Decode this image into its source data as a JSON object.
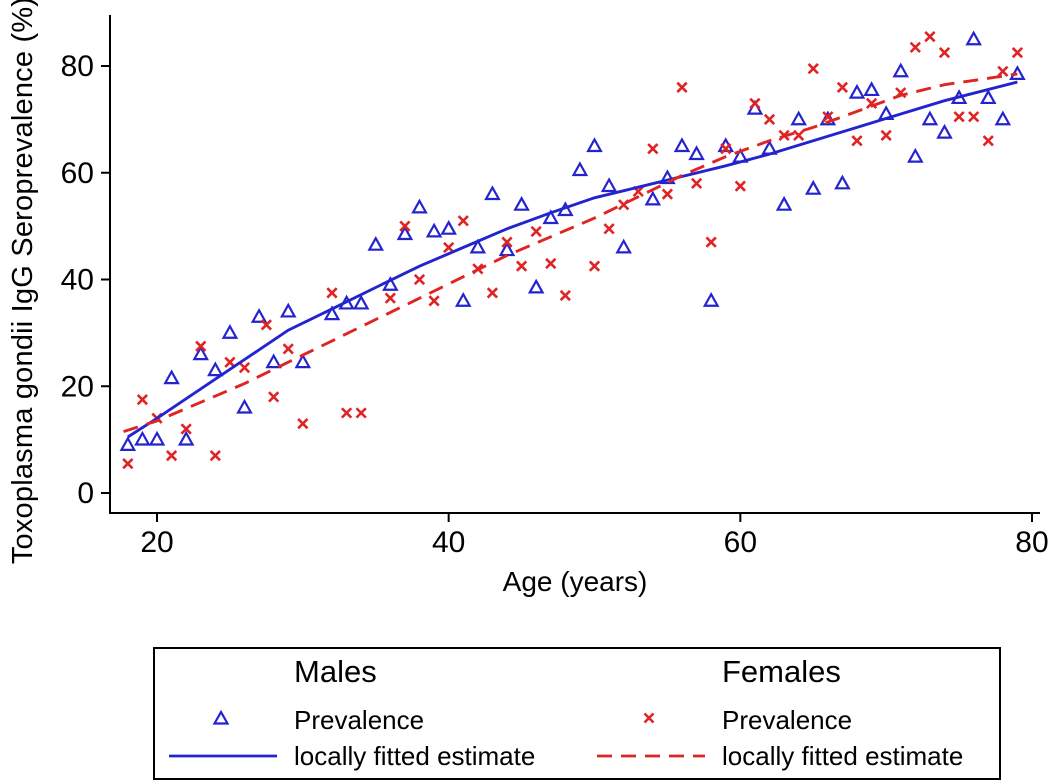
{
  "chart_data": {
    "type": "scatter",
    "title": "",
    "xlabel": "Age (years)",
    "ylabel": "Toxoplasma gondii  IgG  Seroprevalence (%)",
    "xlim": [
      17,
      80.5
    ],
    "ylim": [
      0,
      89
    ],
    "x_ticks": [
      20,
      40,
      60,
      80
    ],
    "y_ticks": [
      0,
      20,
      40,
      60,
      80
    ],
    "grid": false,
    "axis_color": "#000000",
    "series": [
      {
        "name": "Males Prevalence",
        "type": "scatter",
        "marker": "triangle-open",
        "color": "#2424CF",
        "points": [
          [
            18,
            9
          ],
          [
            19,
            10
          ],
          [
            20,
            10
          ],
          [
            21,
            21.5
          ],
          [
            22,
            10
          ],
          [
            23,
            26
          ],
          [
            24,
            23
          ],
          [
            25,
            30
          ],
          [
            26,
            16
          ],
          [
            27,
            33
          ],
          [
            28,
            24.5
          ],
          [
            29,
            34
          ],
          [
            30,
            24.5
          ],
          [
            32,
            33.5
          ],
          [
            33,
            35.5
          ],
          [
            34,
            35.5
          ],
          [
            35,
            46.5
          ],
          [
            36,
            39
          ],
          [
            37,
            48.5
          ],
          [
            38,
            53.5
          ],
          [
            39,
            49
          ],
          [
            40,
            49.5
          ],
          [
            41,
            36
          ],
          [
            42,
            46
          ],
          [
            43,
            56
          ],
          [
            44,
            45.5
          ],
          [
            45,
            54
          ],
          [
            46,
            38.5
          ],
          [
            47,
            51.5
          ],
          [
            48,
            53
          ],
          [
            49,
            60.5
          ],
          [
            50,
            65
          ],
          [
            51,
            57.5
          ],
          [
            52,
            46
          ],
          [
            54,
            55
          ],
          [
            55,
            59
          ],
          [
            56,
            65
          ],
          [
            57,
            63.5
          ],
          [
            58,
            36
          ],
          [
            59,
            65
          ],
          [
            60,
            63
          ],
          [
            61,
            72
          ],
          [
            62,
            64.5
          ],
          [
            63,
            54
          ],
          [
            64,
            70
          ],
          [
            65,
            57
          ],
          [
            66,
            70
          ],
          [
            67,
            58
          ],
          [
            68,
            75
          ],
          [
            69,
            75.5
          ],
          [
            70,
            71
          ],
          [
            71,
            79
          ],
          [
            72,
            63
          ],
          [
            73,
            70
          ],
          [
            74,
            67.5
          ],
          [
            75,
            74
          ],
          [
            76,
            85
          ],
          [
            77,
            74
          ],
          [
            78,
            70
          ],
          [
            79,
            78.5
          ]
        ]
      },
      {
        "name": "Males locally fitted estimate",
        "type": "line",
        "style": "solid",
        "color": "#2424CF",
        "points": [
          [
            18,
            10.5
          ],
          [
            20,
            14
          ],
          [
            23,
            19.5
          ],
          [
            26,
            25
          ],
          [
            29,
            30.5
          ],
          [
            32,
            34.5
          ],
          [
            35,
            38.5
          ],
          [
            38,
            42.5
          ],
          [
            41,
            46
          ],
          [
            44,
            49.5
          ],
          [
            47,
            52.5
          ],
          [
            50,
            55.3
          ],
          [
            53,
            57.3
          ],
          [
            56,
            59.3
          ],
          [
            59,
            61.3
          ],
          [
            62,
            63.5
          ],
          [
            65,
            66
          ],
          [
            68,
            68.5
          ],
          [
            71,
            71
          ],
          [
            74,
            73.5
          ],
          [
            79,
            77
          ]
        ]
      },
      {
        "name": "Females Prevalence",
        "type": "scatter",
        "marker": "x",
        "color": "#E02424",
        "points": [
          [
            18,
            5.5
          ],
          [
            19,
            17.5
          ],
          [
            20,
            14
          ],
          [
            21,
            7
          ],
          [
            22,
            12
          ],
          [
            23,
            27.5
          ],
          [
            24,
            7
          ],
          [
            25,
            24.5
          ],
          [
            26,
            23.5
          ],
          [
            27.5,
            31.5
          ],
          [
            28,
            18
          ],
          [
            29,
            27
          ],
          [
            30,
            13
          ],
          [
            32,
            37.5
          ],
          [
            33,
            15
          ],
          [
            34,
            15
          ],
          [
            36,
            36.5
          ],
          [
            37,
            50
          ],
          [
            38,
            40
          ],
          [
            39,
            36
          ],
          [
            40,
            46
          ],
          [
            41,
            51
          ],
          [
            42,
            42
          ],
          [
            43,
            37.5
          ],
          [
            44,
            47
          ],
          [
            45,
            42.5
          ],
          [
            46,
            49
          ],
          [
            47,
            43
          ],
          [
            48,
            37
          ],
          [
            50,
            42.5
          ],
          [
            51,
            49.5
          ],
          [
            52,
            54
          ],
          [
            53,
            56.5
          ],
          [
            54,
            64.5
          ],
          [
            55,
            56
          ],
          [
            56,
            76
          ],
          [
            57,
            58
          ],
          [
            58,
            47
          ],
          [
            59,
            64.5
          ],
          [
            60,
            57.5
          ],
          [
            61,
            73
          ],
          [
            62,
            70
          ],
          [
            63,
            67
          ],
          [
            64,
            67
          ],
          [
            65,
            79.5
          ],
          [
            66,
            70.5
          ],
          [
            67,
            76
          ],
          [
            68,
            66
          ],
          [
            69,
            73
          ],
          [
            70,
            67
          ],
          [
            71,
            75
          ],
          [
            72,
            83.5
          ],
          [
            73,
            85.5
          ],
          [
            74,
            82.5
          ],
          [
            75,
            70.5
          ],
          [
            76,
            70.5
          ],
          [
            77,
            66
          ],
          [
            78,
            79
          ],
          [
            79,
            82.5
          ]
        ]
      },
      {
        "name": "Females locally fitted estimate",
        "type": "line",
        "style": "dashed",
        "color": "#E02424",
        "points": [
          [
            17.7,
            11.5
          ],
          [
            20,
            13.5
          ],
          [
            23,
            17
          ],
          [
            26,
            20.5
          ],
          [
            29,
            24.5
          ],
          [
            32,
            28.5
          ],
          [
            35,
            32.5
          ],
          [
            38,
            36.5
          ],
          [
            41,
            40.5
          ],
          [
            44,
            44.5
          ],
          [
            47,
            48
          ],
          [
            50,
            51.5
          ],
          [
            53,
            55.5
          ],
          [
            56,
            59.5
          ],
          [
            59,
            63
          ],
          [
            62,
            66
          ],
          [
            65,
            68.5
          ],
          [
            68,
            71.5
          ],
          [
            71,
            74.5
          ],
          [
            74,
            76.5
          ],
          [
            79,
            78.5
          ]
        ]
      }
    ],
    "legend": {
      "position": "bottom",
      "groups": [
        {
          "header": "Males",
          "items": [
            "Prevalence",
            "locally fitted estimate"
          ]
        },
        {
          "header": "Females",
          "items": [
            "Prevalence",
            "locally fitted estimate"
          ]
        }
      ]
    }
  }
}
